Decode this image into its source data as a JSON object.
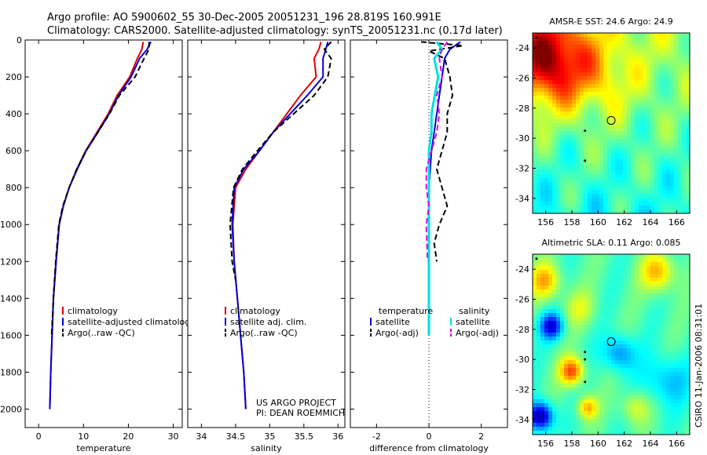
{
  "header": {
    "line1": "Argo profile: AO 5900602_55 30-Dec-2005 20051231_196 28.819S 160.991E",
    "line2": "Climatology: CARS2000. Satellite-adjusted climatology: synTS_20051231.nc (0.17d later)"
  },
  "credit": {
    "line1": "US ARGO PROJECT",
    "line2": "PI: DEAN ROEMMICH"
  },
  "timestamp": "CSIRO 11-Jan-2006 08:31:01",
  "colors": {
    "climatology": "#dd0000",
    "satellite": "#0000dd",
    "argo": "#000000",
    "sat_salinity": "#00e0e0",
    "argo_salinity_adj": "#e000e0"
  },
  "chart_data": [
    {
      "type": "line",
      "xlabel": "temperature",
      "ylabel": "",
      "xlim": [
        -3,
        32
      ],
      "ylim": [
        2100,
        0
      ],
      "xticks": [
        0,
        10,
        20,
        30
      ],
      "yticks": [
        0,
        200,
        400,
        600,
        800,
        1000,
        1200,
        1400,
        1600,
        1800,
        2000
      ],
      "legend": {
        "placement": "lower-right",
        "entries": [
          "climatology",
          "satellite-adjusted climatolog",
          "Argo(..raw -QC)"
        ]
      },
      "series": [
        {
          "name": "climatology",
          "style": "solid",
          "color": "#dd0000",
          "points": [
            [
              23.3,
              10
            ],
            [
              23.0,
              50
            ],
            [
              22.0,
              100
            ],
            [
              20.3,
              200
            ],
            [
              17.5,
              300
            ],
            [
              15.5,
              400
            ],
            [
              13.0,
              500
            ],
            [
              10.5,
              600
            ],
            [
              8.5,
              700
            ],
            [
              6.8,
              800
            ],
            [
              5.5,
              900
            ],
            [
              4.6,
              1000
            ],
            [
              3.9,
              1200
            ],
            [
              3.3,
              1400
            ],
            [
              3.0,
              1600
            ],
            [
              2.7,
              1800
            ],
            [
              2.5,
              2000
            ]
          ]
        },
        {
          "name": "satellite-adjusted climatolog",
          "style": "solid",
          "color": "#0000dd",
          "points": [
            [
              25.0,
              10
            ],
            [
              24.2,
              50
            ],
            [
              22.5,
              100
            ],
            [
              20.6,
              200
            ],
            [
              17.8,
              300
            ],
            [
              15.7,
              400
            ],
            [
              13.2,
              500
            ],
            [
              10.6,
              600
            ],
            [
              8.6,
              700
            ],
            [
              6.8,
              800
            ],
            [
              5.5,
              900
            ],
            [
              4.6,
              1000
            ],
            [
              3.9,
              1200
            ],
            [
              3.3,
              1400
            ],
            [
              3.0,
              1600
            ],
            [
              2.7,
              1800
            ],
            [
              2.5,
              2000
            ]
          ]
        },
        {
          "name": "Argo(..raw -QC)",
          "style": "dashed",
          "color": "#000000",
          "points": [
            [
              24.6,
              10
            ],
            [
              24.6,
              50
            ],
            [
              23.5,
              100
            ],
            [
              21.5,
              200
            ],
            [
              18.0,
              300
            ],
            [
              15.8,
              400
            ],
            [
              13.2,
              500
            ],
            [
              10.6,
              600
            ],
            [
              8.5,
              700
            ],
            [
              6.8,
              800
            ],
            [
              5.4,
              900
            ],
            [
              4.5,
              1000
            ],
            [
              3.8,
              1200
            ],
            [
              3.3,
              1400
            ],
            [
              2.9,
              1600
            ]
          ]
        }
      ]
    },
    {
      "type": "line",
      "xlabel": "salinity",
      "ylabel": "",
      "xlim": [
        33.8,
        36.1
      ],
      "ylim": [
        2100,
        0
      ],
      "xticks": [
        34,
        34.5,
        35,
        35.5,
        36
      ],
      "yticks": [],
      "legend": {
        "placement": "lower-right",
        "entries": [
          "climatology",
          "satellite adj. clim.",
          "Argo(..raw -QC)"
        ]
      },
      "series": [
        {
          "name": "climatology",
          "style": "solid",
          "color": "#dd0000",
          "points": [
            [
              35.75,
              10
            ],
            [
              35.72,
              50
            ],
            [
              35.65,
              100
            ],
            [
              35.68,
              200
            ],
            [
              35.45,
              300
            ],
            [
              35.25,
              400
            ],
            [
              35.05,
              500
            ],
            [
              34.85,
              600
            ],
            [
              34.65,
              700
            ],
            [
              34.5,
              800
            ],
            [
              34.46,
              1000
            ],
            [
              34.48,
              1200
            ],
            [
              34.55,
              1500
            ],
            [
              34.62,
              1800
            ],
            [
              34.65,
              2000
            ]
          ]
        },
        {
          "name": "satellite adj. clim.",
          "style": "solid",
          "color": "#0000dd",
          "points": [
            [
              35.85,
              10
            ],
            [
              35.82,
              50
            ],
            [
              35.78,
              100
            ],
            [
              35.78,
              200
            ],
            [
              35.55,
              300
            ],
            [
              35.3,
              400
            ],
            [
              35.05,
              500
            ],
            [
              34.85,
              600
            ],
            [
              34.62,
              700
            ],
            [
              34.48,
              800
            ],
            [
              34.45,
              1000
            ],
            [
              34.48,
              1200
            ],
            [
              34.55,
              1500
            ],
            [
              34.62,
              1800
            ],
            [
              34.65,
              2000
            ]
          ]
        },
        {
          "name": "Argo(..raw -QC)",
          "style": "dashed",
          "color": "#000000",
          "points": [
            [
              35.9,
              10
            ],
            [
              35.8,
              50
            ],
            [
              35.9,
              100
            ],
            [
              35.85,
              200
            ],
            [
              35.65,
              300
            ],
            [
              35.35,
              400
            ],
            [
              35.05,
              500
            ],
            [
              34.82,
              600
            ],
            [
              34.6,
              700
            ],
            [
              34.47,
              800
            ],
            [
              34.42,
              1000
            ],
            [
              34.45,
              1200
            ],
            [
              34.5,
              1300
            ]
          ]
        }
      ]
    },
    {
      "type": "line",
      "xlabel": "difference from climatology",
      "ylabel": "",
      "xlim": [
        -3,
        3
      ],
      "ylim": [
        2100,
        0
      ],
      "xticks": [
        -2,
        0,
        2
      ],
      "yticks": [],
      "legend": {
        "placement": "lower-center",
        "col1_title": "temperature",
        "col2_title": "salinity",
        "entries": [
          "satellite",
          "Argo(-adj)",
          "satellite",
          "Argo(-adj)"
        ]
      },
      "series": [
        {
          "name": "satellite",
          "group": "temperature",
          "style": "solid",
          "color": "#0000dd",
          "points": [
            [
              1.2,
              10
            ],
            [
              0.8,
              50
            ],
            [
              0.6,
              100
            ],
            [
              0.5,
              200
            ],
            [
              0.4,
              300
            ],
            [
              0.3,
              400
            ],
            [
              0.2,
              500
            ],
            [
              0.1,
              600
            ],
            [
              0.05,
              700
            ],
            [
              0.0,
              800
            ],
            [
              0.0,
              1000
            ],
            [
              0.0,
              1200
            ]
          ]
        },
        {
          "name": "Argo(-adj)",
          "group": "temperature",
          "style": "dashed",
          "color": "#000000",
          "points": [
            [
              -0.3,
              10
            ],
            [
              1.3,
              30
            ],
            [
              0.0,
              60
            ],
            [
              0.6,
              100
            ],
            [
              0.8,
              200
            ],
            [
              0.9,
              300
            ],
            [
              0.7,
              400
            ],
            [
              0.7,
              500
            ],
            [
              0.5,
              600
            ],
            [
              0.3,
              700
            ],
            [
              0.5,
              800
            ],
            [
              0.7,
              900
            ],
            [
              0.4,
              1000
            ],
            [
              0.2,
              1100
            ],
            [
              0.3,
              1200
            ]
          ]
        },
        {
          "name": "satellite",
          "group": "salinity",
          "style": "solid",
          "color": "#00e0e0",
          "points": [
            [
              0.3,
              10
            ],
            [
              0.5,
              50
            ],
            [
              0.2,
              100
            ],
            [
              0.35,
              200
            ],
            [
              0.1,
              400
            ],
            [
              0.1,
              500
            ],
            [
              0.0,
              600
            ],
            [
              0.0,
              800
            ],
            [
              0.0,
              1000
            ],
            [
              0.0,
              1500
            ],
            [
              0.0,
              1600
            ]
          ]
        },
        {
          "name": "Argo(-adj)",
          "group": "salinity",
          "style": "dashed",
          "color": "#e000e0",
          "points": [
            [
              0.7,
              10
            ],
            [
              0.5,
              50
            ],
            [
              0.4,
              100
            ],
            [
              0.5,
              200
            ],
            [
              0.3,
              300
            ],
            [
              0.4,
              400
            ],
            [
              0.3,
              500
            ],
            [
              0.1,
              600
            ],
            [
              -0.1,
              700
            ],
            [
              -0.1,
              800
            ],
            [
              0.0,
              900
            ],
            [
              -0.1,
              1000
            ],
            [
              -0.05,
              1200
            ]
          ]
        }
      ]
    },
    {
      "type": "heatmap",
      "title": "AMSR-E SST: 24.6  Argo: 24.9",
      "xlim": [
        155,
        167
      ],
      "ylim": [
        -35,
        -23
      ],
      "xticks": [
        156,
        158,
        160,
        162,
        164,
        166
      ],
      "yticks": [
        -24,
        -26,
        -28,
        -30,
        -32,
        -34
      ],
      "marker": {
        "lon": 161.0,
        "lat": -28.82
      },
      "track": [
        [
          155.3,
          -23.3
        ],
        [
          159.0,
          -29.5
        ],
        [
          159.0,
          -31.5
        ]
      ],
      "colormap": "jet"
    },
    {
      "type": "heatmap",
      "title": "Altimetric SLA: 0.11  Argo: 0.085",
      "xlim": [
        155,
        167
      ],
      "ylim": [
        -35,
        -23
      ],
      "xticks": [
        156,
        158,
        160,
        162,
        164,
        166
      ],
      "yticks": [
        -24,
        -26,
        -28,
        -30,
        -32,
        -34
      ],
      "marker": {
        "lon": 161.0,
        "lat": -28.82
      },
      "track": [
        [
          155.3,
          -23.3
        ],
        [
          159.0,
          -29.5
        ],
        [
          159.0,
          -30.0
        ],
        [
          159.0,
          -31.5
        ]
      ],
      "colormap": "jet"
    }
  ]
}
